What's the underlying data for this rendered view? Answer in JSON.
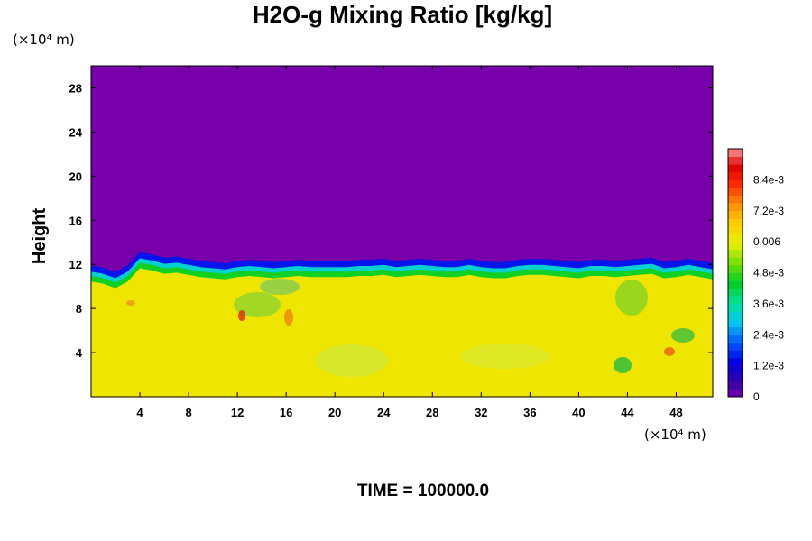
{
  "chart_data": {
    "type": "heatmap",
    "title": "H2O-g Mixing Ratio [kg/kg]",
    "ylabel": "Height",
    "x_unit": "(×10⁴ m)",
    "y_unit": "(×10⁴ m)",
    "xlim": [
      0,
      51
    ],
    "ylim": [
      0,
      30
    ],
    "xticks": [
      4,
      8,
      12,
      16,
      20,
      24,
      28,
      32,
      36,
      40,
      44,
      48
    ],
    "yticks": [
      4,
      8,
      12,
      16,
      20,
      24,
      28
    ],
    "xtick_labels": [
      "4",
      "8",
      "12",
      "16",
      "20",
      "24",
      "28",
      "32",
      "36",
      "40",
      "44",
      "48"
    ],
    "ytick_labels": [
      "4",
      "8",
      "12",
      "16",
      "20",
      "24",
      "28"
    ],
    "colorbar": {
      "min": 0,
      "max": 0.0096,
      "levels": 32,
      "tick_values": [
        0,
        0.0012,
        0.0024,
        0.0036,
        0.0048,
        0.006,
        0.0072,
        0.0084
      ],
      "tick_labels": [
        "0",
        "1.2e-3",
        "2.4e-3",
        "3.6e-3",
        "4.8e-3",
        "0.006",
        "7.2e-3",
        "8.4e-3"
      ]
    },
    "field": {
      "upper_value": 0,
      "lower_value": 0.0062,
      "interface_height": [
        11.2,
        11.0,
        10.6,
        11.2,
        12.4,
        12.2,
        11.9,
        12.0,
        11.8,
        11.6,
        11.5,
        11.4,
        11.6,
        11.7,
        11.6,
        11.5,
        11.6,
        11.7,
        11.6,
        11.6,
        11.6,
        11.6,
        11.7,
        11.7,
        11.8,
        11.6,
        11.7,
        11.8,
        11.7,
        11.6,
        11.6,
        11.8,
        11.6,
        11.5,
        11.5,
        11.7,
        11.8,
        11.8,
        11.7,
        11.6,
        11.5,
        11.7,
        11.7,
        11.6,
        11.7,
        11.8,
        11.9,
        11.5,
        11.6,
        11.8,
        11.6,
        11.4
      ]
    },
    "footer": "TIME = 100000.0"
  }
}
